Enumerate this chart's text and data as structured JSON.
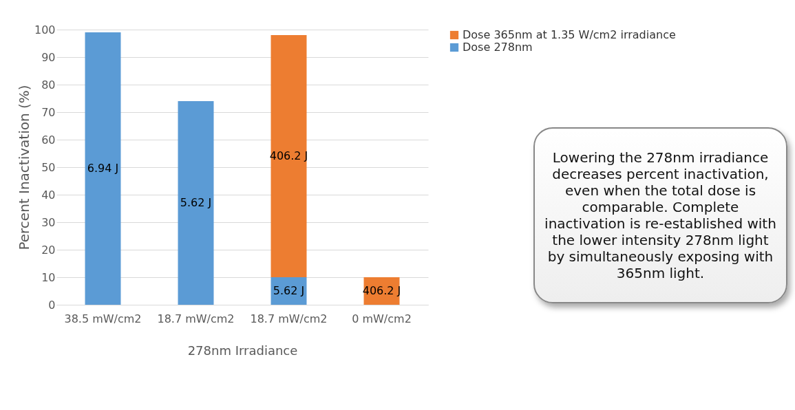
{
  "chart_data": {
    "type": "bar",
    "stacked": true,
    "categories": [
      "38.5 mW/cm2",
      "18.7 mW/cm2",
      "18.7 mW/cm2",
      "0 mW/cm2"
    ],
    "xlabel": "278nm Irradiance",
    "ylabel": "Percent Inactivation (%)",
    "ylim": [
      0,
      100
    ],
    "yticks": [
      0,
      10,
      20,
      30,
      40,
      50,
      60,
      70,
      80,
      90,
      100
    ],
    "grid": "y",
    "legend": "top right",
    "series": [
      {
        "name": "Dose 278nm",
        "color": "#5b9bd5",
        "values": [
          99,
          74,
          10,
          null
        ]
      },
      {
        "name": "Dose 365nm at 1.35 W/cm2 irradiance",
        "color": "#ed7d31",
        "values": [
          null,
          null,
          88,
          10
        ]
      }
    ],
    "annotations": [
      "6.94 J",
      "5.62 J",
      "5.62 J",
      "406.2 J",
      "406.2 J",
      "Lowering the 278nm irradiance decreases percent inactivation, even when the total dose is comparable. Complete inactivation is re-established with the lower intensity 278nm light by simultaneously exposing with 365nm light."
    ]
  }
}
